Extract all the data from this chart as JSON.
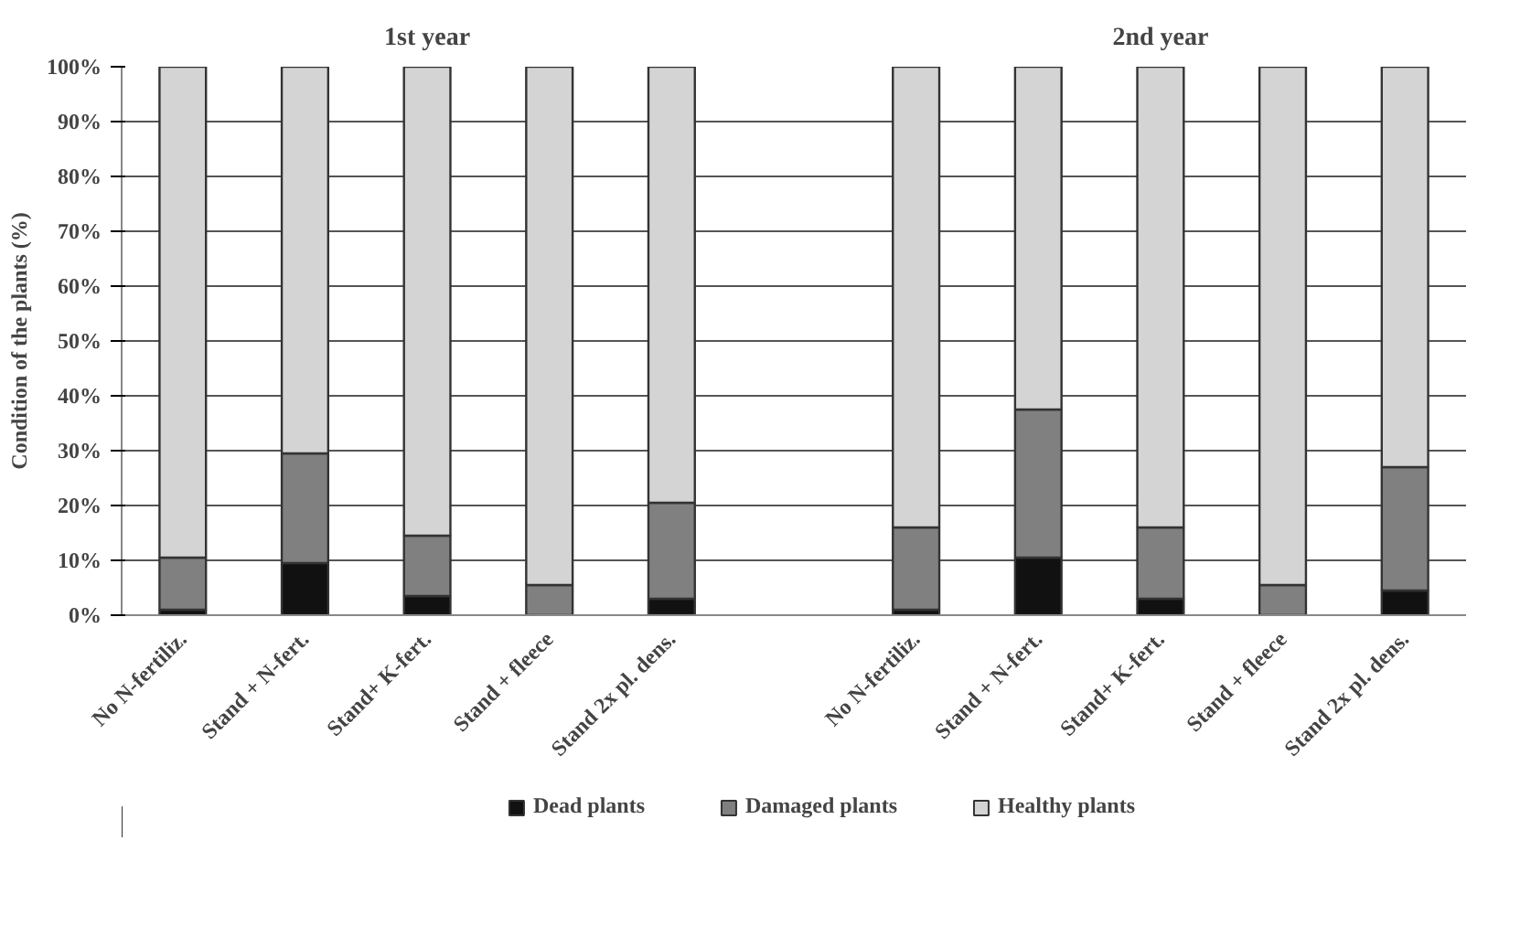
{
  "chart_data": {
    "type": "bar",
    "stacked": true,
    "ylabel": "Condition of the plants (%)",
    "annotations": [
      "1st year",
      "2nd year"
    ],
    "categories": [
      "No N-fertiliz.",
      "Stand + N-fert.",
      "Stand+ K-fert.",
      "Stand + fleece",
      "Stand 2x pl. dens.",
      null,
      "No N-fertiliz.",
      "Stand + N-fert.",
      "Stand+ K-fert.",
      "Stand + fleece",
      "Stand 2x pl. dens."
    ],
    "series": [
      {
        "name": "Dead plants",
        "color": "#111111",
        "values": [
          1,
          9.5,
          3.5,
          0,
          3,
          null,
          1,
          10.5,
          3,
          0,
          4.5
        ]
      },
      {
        "name": "Damaged plants",
        "color": "#808080",
        "values": [
          9.5,
          20,
          11,
          5.5,
          17.5,
          null,
          15,
          27,
          13,
          5.5,
          22.5
        ]
      },
      {
        "name": "Healthy plants",
        "color": "#d4d4d4",
        "values": [
          89.5,
          70.5,
          85.5,
          94.5,
          79.5,
          null,
          84,
          62.5,
          84,
          94.5,
          73
        ]
      }
    ],
    "ylim": [
      0,
      100
    ],
    "yticks": [
      {
        "value": 0,
        "label": "0%"
      },
      {
        "value": 10,
        "label": "10%"
      },
      {
        "value": 20,
        "label": "20%"
      },
      {
        "value": 30,
        "label": "30%"
      },
      {
        "value": 40,
        "label": "40%"
      },
      {
        "value": 50,
        "label": "50%"
      },
      {
        "value": 60,
        "label": "60%"
      },
      {
        "value": 70,
        "label": "70%"
      },
      {
        "value": 80,
        "label": "80%"
      },
      {
        "value": 90,
        "label": "90%"
      },
      {
        "value": 100,
        "label": "100%"
      }
    ],
    "grid": "y",
    "legend": "bottom"
  }
}
